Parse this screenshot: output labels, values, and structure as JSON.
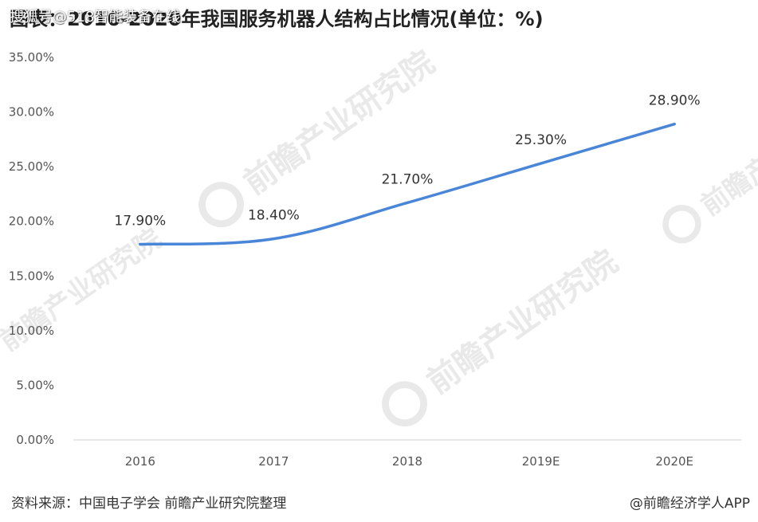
{
  "header": {
    "title": "图表：2016-2020年我国服务机器人结构占比情况(单位：%)",
    "overlay_source": "搜狐号@518智能装备在线"
  },
  "watermark": {
    "text": "前瞻产业研究院"
  },
  "footer": {
    "source": "资料来源：中国电子学会 前瞻产业研究院整理",
    "credit": "@前瞻经济学人APP"
  },
  "colors": {
    "line": "#4a86d8",
    "axis": "#d9d9d9",
    "watermark": "#e9e9e9"
  },
  "chart_data": {
    "type": "line",
    "categories": [
      "2016",
      "2017",
      "2018",
      "2019E",
      "2020E"
    ],
    "values": [
      17.9,
      18.4,
      21.7,
      25.3,
      28.9
    ],
    "data_labels": [
      "17.90%",
      "18.40%",
      "21.70%",
      "25.30%",
      "28.90%"
    ],
    "ylim": [
      0,
      35
    ],
    "yticks": [
      0,
      5,
      10,
      15,
      20,
      25,
      30,
      35
    ],
    "ytick_labels": [
      "0.00%",
      "5.00%",
      "10.00%",
      "15.00%",
      "20.00%",
      "25.00%",
      "30.00%",
      "35.00%"
    ],
    "smooth": true,
    "grid": false,
    "legend": "none"
  }
}
